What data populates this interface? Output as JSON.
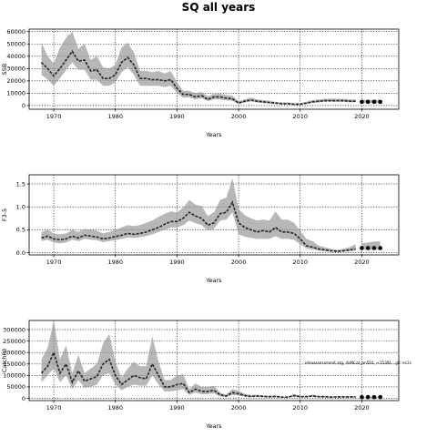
{
  "figure": {
    "title": "SQ all years"
  },
  "chart_data": [
    {
      "type": "line",
      "ylabel": "SSB",
      "xlabel": "Years",
      "xlim": [
        1966,
        2026
      ],
      "ylim": [
        -3000,
        62000
      ],
      "xticks": [
        1970,
        1980,
        1990,
        2000,
        2010,
        2020
      ],
      "yticks": [
        0,
        10000,
        20000,
        30000,
        40000,
        50000,
        60000
      ],
      "ytick_labels": [
        "0",
        "10000",
        "20000",
        "30000",
        "40000",
        "50000",
        "60000"
      ],
      "grid": true,
      "x": [
        1968,
        1969,
        1970,
        1971,
        1972,
        1973,
        1974,
        1975,
        1976,
        1977,
        1978,
        1979,
        1980,
        1981,
        1982,
        1983,
        1984,
        1985,
        1986,
        1987,
        1988,
        1989,
        1990,
        1991,
        1992,
        1993,
        1994,
        1995,
        1996,
        1997,
        1998,
        1999,
        2000,
        2001,
        2002,
        2003,
        2004,
        2005,
        2006,
        2007,
        2008,
        2009,
        2010,
        2011,
        2012,
        2013,
        2014,
        2015,
        2016,
        2017,
        2018,
        2019
      ],
      "median": [
        35000,
        30000,
        24000,
        30000,
        37000,
        44000,
        36000,
        37000,
        28000,
        29000,
        22000,
        22000,
        25000,
        35000,
        39000,
        33000,
        22000,
        22000,
        21000,
        21000,
        20000,
        21000,
        14000,
        9000,
        9000,
        7000,
        8000,
        5000,
        7000,
        7000,
        6000,
        5500,
        2000,
        3500,
        4500,
        3500,
        3000,
        2500,
        2000,
        1500,
        1500,
        1000,
        1000,
        2000,
        3000,
        3500,
        4000,
        4000,
        4000,
        4000,
        3500,
        3500
      ],
      "lower": [
        25000,
        21000,
        16000,
        22000,
        29000,
        35000,
        29000,
        29000,
        21000,
        21000,
        16000,
        16000,
        19000,
        27000,
        31000,
        25000,
        16000,
        16000,
        16000,
        16000,
        15000,
        16000,
        10000,
        6500,
        6500,
        5000,
        6000,
        3500,
        5000,
        5000,
        4200,
        3800,
        1300,
        2500,
        3300,
        2500,
        2000,
        1700,
        1300,
        900,
        900,
        500,
        500,
        1300,
        2000,
        2500,
        3000,
        3000,
        3000,
        3000,
        2600,
        2600
      ],
      "upper": [
        51000,
        40000,
        34000,
        47000,
        55000,
        60000,
        46000,
        50000,
        37000,
        40000,
        31000,
        30000,
        33000,
        47000,
        51000,
        43000,
        28000,
        28000,
        27000,
        28000,
        26000,
        28000,
        19000,
        12000,
        12000,
        10000,
        11000,
        7500,
        9500,
        9500,
        8500,
        8000,
        3500,
        5000,
        6500,
        5000,
        4500,
        3800,
        3000,
        2500,
        2500,
        2000,
        2000,
        3200,
        4500,
        5000,
        5500,
        5500,
        5500,
        5500,
        5000,
        5000
      ],
      "proj_x": [
        2020,
        2021,
        2022,
        2023
      ],
      "proj_median": [
        3000,
        3000,
        3000,
        3000
      ],
      "proj_lower": [
        2000,
        2000,
        2000,
        2000
      ],
      "proj_upper": [
        4800,
        4800,
        4800,
        4800
      ]
    },
    {
      "type": "line",
      "ylabel": "F3-5",
      "xlabel": "Years",
      "xlim": [
        1966,
        2026
      ],
      "ylim": [
        -0.05,
        1.7
      ],
      "xticks": [
        1970,
        1980,
        1990,
        2000,
        2010,
        2020
      ],
      "yticks": [
        0.0,
        0.5,
        1.0,
        1.5
      ],
      "ytick_labels": [
        "0.0",
        "0.5",
        "1.0",
        "1.5"
      ],
      "grid": true,
      "x": [
        1968,
        1969,
        1970,
        1971,
        1972,
        1973,
        1974,
        1975,
        1976,
        1977,
        1978,
        1979,
        1980,
        1981,
        1982,
        1983,
        1984,
        1985,
        1986,
        1987,
        1988,
        1989,
        1990,
        1991,
        1992,
        1993,
        1994,
        1995,
        1996,
        1997,
        1998,
        1999,
        2000,
        2001,
        2002,
        2003,
        2004,
        2005,
        2006,
        2007,
        2008,
        2009,
        2010,
        2011,
        2012,
        2013,
        2014,
        2015,
        2016,
        2017,
        2018,
        2019
      ],
      "median": [
        0.32,
        0.36,
        0.3,
        0.28,
        0.3,
        0.36,
        0.32,
        0.38,
        0.36,
        0.34,
        0.3,
        0.32,
        0.35,
        0.38,
        0.42,
        0.4,
        0.42,
        0.45,
        0.5,
        0.55,
        0.62,
        0.68,
        0.68,
        0.75,
        0.88,
        0.8,
        0.75,
        0.6,
        0.65,
        0.85,
        0.88,
        1.1,
        0.65,
        0.55,
        0.5,
        0.45,
        0.48,
        0.45,
        0.55,
        0.45,
        0.45,
        0.42,
        0.3,
        0.15,
        0.12,
        0.08,
        0.06,
        0.04,
        0.03,
        0.04,
        0.06,
        0.08
      ],
      "lower": [
        0.25,
        0.28,
        0.22,
        0.2,
        0.22,
        0.28,
        0.25,
        0.3,
        0.28,
        0.27,
        0.23,
        0.25,
        0.27,
        0.3,
        0.33,
        0.32,
        0.34,
        0.36,
        0.4,
        0.45,
        0.5,
        0.55,
        0.55,
        0.6,
        0.7,
        0.64,
        0.6,
        0.48,
        0.52,
        0.7,
        0.72,
        0.88,
        0.4,
        0.35,
        0.32,
        0.3,
        0.3,
        0.3,
        0.36,
        0.3,
        0.3,
        0.28,
        0.18,
        0.09,
        0.07,
        0.04,
        0.03,
        0.02,
        0.01,
        0.02,
        0.03,
        0.04
      ],
      "upper": [
        0.45,
        0.5,
        0.42,
        0.4,
        0.42,
        0.5,
        0.45,
        0.52,
        0.5,
        0.48,
        0.42,
        0.45,
        0.5,
        0.55,
        0.6,
        0.58,
        0.6,
        0.65,
        0.7,
        0.78,
        0.85,
        0.9,
        0.88,
        0.98,
        1.15,
        1.05,
        1.02,
        0.8,
        0.88,
        1.15,
        1.2,
        1.62,
        0.95,
        0.82,
        0.75,
        0.7,
        0.72,
        0.7,
        0.9,
        0.72,
        0.72,
        0.65,
        0.48,
        0.3,
        0.25,
        0.15,
        0.12,
        0.08,
        0.06,
        0.08,
        0.12,
        0.18
      ],
      "proj_x": [
        2020,
        2021,
        2022,
        2023
      ],
      "proj_median": [
        0.1,
        0.1,
        0.1,
        0.1
      ],
      "proj_lower": [
        0.06,
        0.06,
        0.06,
        0.06
      ],
      "proj_upper": [
        0.2,
        0.22,
        0.24,
        0.25
      ]
    },
    {
      "type": "line",
      "ylabel": "Catch(t)",
      "xlabel": "Years",
      "xlim": [
        1966,
        2026
      ],
      "ylim": [
        -10000,
        340000
      ],
      "xticks": [
        1970,
        1980,
        1990,
        2000,
        2010,
        2020
      ],
      "yticks": [
        0,
        50000,
        100000,
        150000,
        200000,
        250000,
        300000
      ],
      "ytick_labels": [
        "0",
        "50000",
        "100000",
        "150000",
        "200000",
        "250000",
        "300000"
      ],
      "grid": true,
      "annotation": "ideaassessment.arg, iteNCat_an501, +15391 , git: ec2c",
      "x": [
        1968,
        1969,
        1970,
        1971,
        1972,
        1973,
        1974,
        1975,
        1976,
        1977,
        1978,
        1979,
        1980,
        1981,
        1982,
        1983,
        1984,
        1985,
        1986,
        1987,
        1988,
        1989,
        1990,
        1991,
        1992,
        1993,
        1994,
        1995,
        1996,
        1997,
        1998,
        1999,
        2000,
        2001,
        2002,
        2003,
        2004,
        2005,
        2006,
        2007,
        2008,
        2009,
        2010,
        2011,
        2012,
        2013,
        2014,
        2015,
        2016,
        2017,
        2018,
        2019
      ],
      "median": [
        110000,
        140000,
        200000,
        110000,
        150000,
        70000,
        120000,
        75000,
        85000,
        95000,
        150000,
        170000,
        100000,
        60000,
        80000,
        100000,
        90000,
        85000,
        150000,
        100000,
        50000,
        50000,
        60000,
        65000,
        25000,
        40000,
        30000,
        30000,
        35000,
        15000,
        10000,
        25000,
        20000,
        12000,
        8000,
        10000,
        8000,
        7000,
        8000,
        5000,
        5000,
        12000,
        7000,
        7000,
        10000,
        7000,
        7000,
        5000,
        6000,
        6000,
        6000,
        6000
      ],
      "lower": [
        70000,
        100000,
        130000,
        70000,
        100000,
        40000,
        80000,
        45000,
        50000,
        60000,
        100000,
        110000,
        60000,
        35000,
        50000,
        60000,
        55000,
        55000,
        100000,
        60000,
        30000,
        30000,
        35000,
        40000,
        15000,
        25000,
        18000,
        18000,
        22000,
        8000,
        6000,
        15000,
        12000,
        7000,
        5000,
        6000,
        5000,
        4000,
        5000,
        3000,
        3000,
        7000,
        4000,
        4000,
        6000,
        4000,
        4000,
        3000,
        3500,
        3500,
        3500,
        3500
      ],
      "upper": [
        170000,
        220000,
        340000,
        170000,
        230000,
        110000,
        190000,
        110000,
        130000,
        150000,
        240000,
        280000,
        160000,
        90000,
        130000,
        160000,
        140000,
        140000,
        270000,
        160000,
        80000,
        80000,
        100000,
        105000,
        40000,
        65000,
        50000,
        50000,
        55000,
        25000,
        16000,
        40000,
        32000,
        20000,
        14000,
        16000,
        13000,
        11000,
        13000,
        8000,
        8000,
        18000,
        11000,
        11000,
        16000,
        11000,
        11000,
        8000,
        9000,
        9000,
        9000,
        9000
      ],
      "proj_x": [
        2020,
        2021,
        2022,
        2023
      ],
      "proj_median": [
        5000,
        5000,
        5000,
        5000
      ],
      "proj_lower": [
        3000,
        3000,
        3000,
        3000
      ],
      "proj_upper": [
        7000,
        7000,
        7000,
        7000
      ]
    }
  ]
}
